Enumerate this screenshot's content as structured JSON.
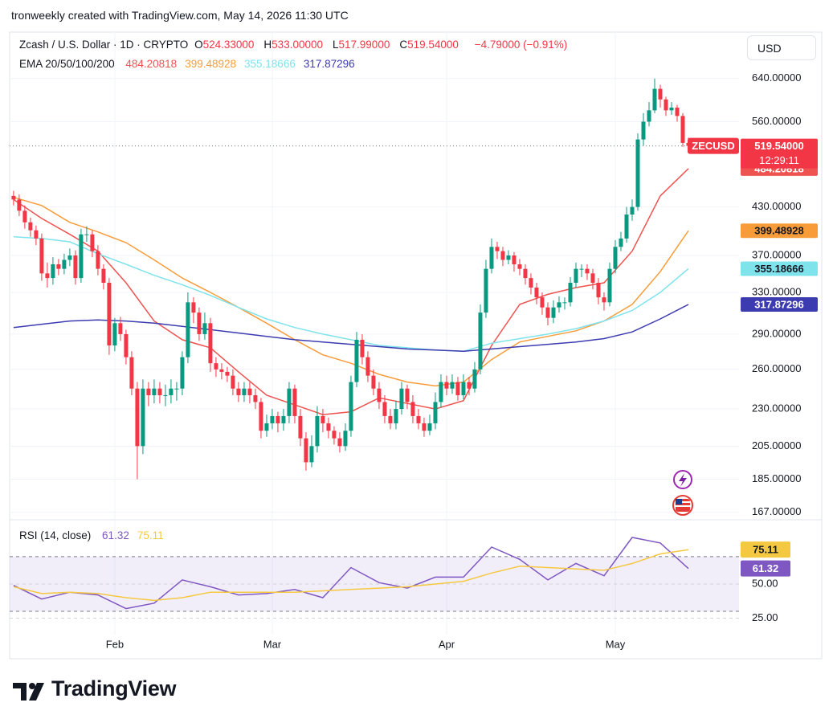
{
  "watermark": "tronweekly created with TradingView.com, May 14, 2026 11:30 UTC",
  "currency_button": "USD",
  "brand": "TradingView",
  "chart_data": [
    {
      "type": "candlestick",
      "title": "Zcash / U.S. Dollar · 1D · CRYPTO",
      "ohlc_legend": [
        {
          "key": "O",
          "label": "524.33000"
        },
        {
          "key": "H",
          "label": "533.00000"
        },
        {
          "key": "L",
          "label": "517.99000"
        },
        {
          "key": "C",
          "label": "519.54000"
        }
      ],
      "change_label": "−4.79000 (−0.91%)",
      "indicator_title": "EMA 20/50/100/200",
      "symbol_badge": "ZECUSD",
      "last_price_label": "519.54000",
      "countdown": "12:29:11",
      "up_color": "#089981",
      "down_color": "#f23645",
      "log": true,
      "grid": true,
      "xlim": [
        -0.7,
        129
      ],
      "xticks": [
        {
          "value": 18,
          "label": "Feb"
        },
        {
          "value": 46,
          "label": "Mar"
        },
        {
          "value": 77,
          "label": "Apr"
        },
        {
          "value": 107,
          "label": "May"
        }
      ],
      "ylim": [
        164,
        739
      ],
      "yticks": [
        {
          "value": 640,
          "label": "640.00000"
        },
        {
          "value": 560,
          "label": "560.00000"
        },
        {
          "value": 430,
          "label": "430.00000"
        },
        {
          "value": 370,
          "label": "370.00000"
        },
        {
          "value": 330,
          "label": "330.00000"
        },
        {
          "value": 290,
          "label": "290.00000"
        },
        {
          "value": 260,
          "label": "260.00000"
        },
        {
          "value": 230,
          "label": "230.00000"
        },
        {
          "value": 205,
          "label": "205.00000"
        },
        {
          "value": 185,
          "label": "185.00000"
        },
        {
          "value": 167,
          "label": "167.00000"
        }
      ],
      "open": [
        445,
        440,
        425,
        410,
        400,
        390,
        350,
        345,
        360,
        355,
        365,
        370,
        345,
        395,
        395,
        375,
        355,
        340,
        280,
        300,
        290,
        270,
        245,
        205,
        245,
        240,
        245,
        240,
        240,
        245,
        245,
        270,
        320,
        310,
        290,
        300,
        265,
        260,
        258,
        255,
        245,
        240,
        245,
        240,
        235,
        215,
        220,
        225,
        220,
        225,
        245,
        225,
        210,
        195,
        205,
        225,
        220,
        215,
        210,
        205,
        215,
        250,
        285,
        270,
        255,
        245,
        235,
        225,
        220,
        230,
        245,
        235,
        225,
        220,
        215,
        220,
        235,
        250,
        245,
        250,
        240,
        250,
        245,
        260,
        310,
        355,
        380,
        375,
        365,
        370,
        360,
        355,
        345,
        335,
        325,
        315,
        305,
        315,
        320,
        320,
        340,
        355,
        355,
        350,
        340,
        325,
        320,
        355,
        380,
        390,
        420,
        430,
        530,
        560,
        580,
        620,
        600,
        580,
        585,
        570,
        524.33
      ],
      "high": [
        452,
        447,
        432,
        416,
        406,
        396,
        362,
        368,
        366,
        372,
        378,
        376,
        402,
        405,
        400,
        382,
        360,
        345,
        305,
        306,
        294,
        275,
        250,
        252,
        250,
        252,
        250,
        248,
        252,
        250,
        275,
        330,
        325,
        315,
        310,
        305,
        270,
        265,
        262,
        260,
        250,
        250,
        250,
        245,
        238,
        226,
        230,
        228,
        230,
        250,
        248,
        230,
        214,
        212,
        232,
        230,
        224,
        218,
        214,
        220,
        255,
        292,
        290,
        275,
        260,
        250,
        240,
        230,
        236,
        250,
        248,
        240,
        230,
        224,
        226,
        242,
        256,
        255,
        256,
        254,
        256,
        254,
        266,
        318,
        365,
        390,
        386,
        380,
        376,
        374,
        366,
        360,
        350,
        340,
        330,
        320,
        322,
        326,
        325,
        346,
        362,
        360,
        360,
        355,
        345,
        330,
        362,
        388,
        398,
        430,
        440,
        540,
        575,
        595,
        640,
        628,
        605,
        595,
        590,
        575,
        533
      ],
      "low": [
        432,
        418,
        402,
        392,
        382,
        342,
        335,
        338,
        348,
        349,
        358,
        338,
        340,
        386,
        368,
        348,
        333,
        272,
        275,
        284,
        264,
        240,
        185,
        200,
        232,
        234,
        234,
        232,
        234,
        236,
        240,
        265,
        300,
        284,
        285,
        258,
        254,
        252,
        250,
        240,
        235,
        235,
        234,
        230,
        210,
        211,
        216,
        214,
        215,
        220,
        220,
        205,
        190,
        192,
        201,
        214,
        210,
        206,
        201,
        202,
        211,
        246,
        264,
        250,
        240,
        230,
        220,
        216,
        216,
        226,
        230,
        220,
        216,
        211,
        212,
        216,
        231,
        240,
        241,
        236,
        237,
        240,
        242,
        256,
        305,
        350,
        366,
        358,
        360,
        352,
        348,
        338,
        328,
        318,
        308,
        298,
        300,
        310,
        313,
        316,
        335,
        346,
        343,
        333,
        318,
        312,
        316,
        350,
        375,
        385,
        412,
        425,
        520,
        552,
        575,
        585,
        570,
        572,
        560,
        518,
        517.99
      ],
      "close": [
        440,
        425,
        410,
        400,
        390,
        350,
        345,
        360,
        355,
        365,
        370,
        345,
        395,
        395,
        375,
        355,
        340,
        280,
        300,
        290,
        270,
        245,
        205,
        245,
        240,
        245,
        240,
        240,
        245,
        245,
        270,
        320,
        310,
        290,
        300,
        265,
        260,
        258,
        255,
        245,
        240,
        245,
        240,
        235,
        215,
        220,
        225,
        220,
        225,
        245,
        225,
        210,
        195,
        205,
        225,
        220,
        215,
        210,
        205,
        215,
        250,
        285,
        270,
        255,
        245,
        235,
        225,
        220,
        230,
        245,
        235,
        225,
        220,
        215,
        220,
        235,
        250,
        245,
        250,
        240,
        250,
        245,
        260,
        310,
        355,
        380,
        375,
        365,
        370,
        360,
        355,
        345,
        335,
        325,
        315,
        305,
        315,
        320,
        320,
        340,
        355,
        355,
        350,
        340,
        325,
        320,
        355,
        380,
        390,
        420,
        430,
        530,
        560,
        580,
        620,
        600,
        580,
        585,
        570,
        524.33,
        519.54
      ],
      "series": [
        {
          "color": "#ef5350",
          "x": [
            0,
            5,
            10,
            15,
            20,
            25,
            30,
            35,
            40,
            45,
            50,
            55,
            60,
            65,
            70,
            75,
            80,
            85,
            90,
            95,
            100,
            105,
            110,
            115,
            120
          ],
          "values": [
            440,
            415,
            395,
            375,
            340,
            302,
            285,
            278,
            258,
            240,
            233,
            226,
            228,
            238,
            234,
            230,
            236,
            280,
            318,
            328,
            335,
            340,
            375,
            445,
            484.20818
          ]
        },
        {
          "color": "#f89c3a",
          "x": [
            0,
            5,
            10,
            15,
            20,
            25,
            30,
            35,
            40,
            45,
            50,
            55,
            60,
            65,
            70,
            75,
            80,
            85,
            90,
            95,
            100,
            105,
            110,
            115,
            120
          ],
          "values": [
            443,
            432,
            410,
            398,
            385,
            365,
            345,
            330,
            315,
            300,
            285,
            272,
            265,
            256,
            250,
            247,
            250,
            268,
            283,
            288,
            293,
            302,
            318,
            352,
            399.48928
          ]
        },
        {
          "color": "#7fe3ec",
          "x": [
            0,
            5,
            10,
            15,
            20,
            25,
            30,
            35,
            40,
            45,
            50,
            55,
            60,
            65,
            70,
            75,
            80,
            85,
            90,
            95,
            100,
            105,
            110,
            115,
            120
          ],
          "values": [
            392,
            390,
            386,
            372,
            360,
            348,
            338,
            327,
            315,
            304,
            296,
            290,
            285,
            280,
            278,
            276,
            275,
            282,
            286,
            290,
            295,
            302,
            312,
            330,
            355.18666
          ]
        },
        {
          "color": "#3d3bb0",
          "x": [
            0,
            5,
            10,
            15,
            20,
            25,
            30,
            35,
            40,
            45,
            50,
            55,
            60,
            65,
            70,
            75,
            80,
            85,
            90,
            95,
            100,
            105,
            110,
            115,
            120
          ],
          "values": [
            296,
            299,
            302,
            303,
            302,
            300,
            297,
            294,
            291,
            288,
            285,
            283,
            281,
            279,
            277,
            276,
            275,
            277,
            279,
            281,
            283,
            286,
            292,
            304,
            317.87296
          ]
        }
      ]
    },
    {
      "type": "line",
      "title": "RSI (14, close)",
      "xlim": [
        -0.7,
        129
      ],
      "ylim": [
        13,
        94
      ],
      "yticks": [
        {
          "value": 50,
          "label": "50.00"
        },
        {
          "value": 25,
          "label": "25.00"
        }
      ],
      "band": [
        30,
        70
      ],
      "band_color": "#7e57c2",
      "series": [
        {
          "color": "#7e57c2",
          "x": [
            0,
            5,
            10,
            15,
            20,
            25,
            30,
            35,
            40,
            45,
            50,
            55,
            60,
            65,
            70,
            75,
            80,
            85,
            90,
            95,
            100,
            105,
            110,
            115,
            120
          ],
          "values": [
            49,
            39,
            44,
            42,
            32,
            36,
            53,
            48,
            42,
            43,
            46,
            40,
            62,
            51,
            47,
            55,
            55,
            77,
            68,
            53,
            65,
            56,
            84,
            80,
            61.32
          ]
        },
        {
          "color": "#f5c842",
          "x": [
            0,
            5,
            10,
            15,
            20,
            25,
            30,
            35,
            40,
            45,
            50,
            55,
            60,
            65,
            70,
            75,
            80,
            85,
            90,
            95,
            100,
            105,
            110,
            115,
            120
          ],
          "values": [
            48,
            43,
            44,
            43,
            40,
            38,
            40,
            44,
            44,
            44,
            44,
            45,
            46,
            47,
            48,
            50,
            52,
            58,
            63,
            62,
            61,
            60,
            65,
            72,
            75.11
          ]
        }
      ]
    }
  ]
}
